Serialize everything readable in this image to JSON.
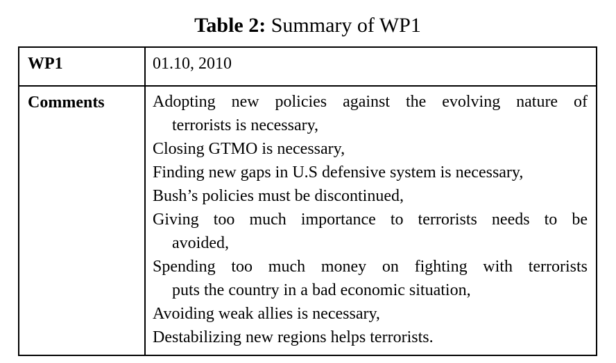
{
  "caption": {
    "label": "Table 2:",
    "text": " Summary of WP1"
  },
  "table": {
    "wp_row": {
      "header": "WP1",
      "value": "01.10, 2010"
    },
    "comments_row": {
      "header": "Comments",
      "lines": [
        "Adopting new policies against the evolving nature of",
        "terrorists is necessary,",
        "Closing GTMO is necessary,",
        "Finding new gaps in U.S defensive system is necessary,",
        "Bush’s policies must be discontinued,",
        "Giving too much importance to terrorists needs to be",
        "avoided,",
        "Spending too much money on fighting with terrorists",
        "puts the country in a bad economic situation,",
        "Avoiding weak allies is necessary,",
        "Destabilizing new regions helps terrorists."
      ]
    }
  },
  "colors": {
    "text": "#000000",
    "border": "#000000",
    "background": "#ffffff"
  }
}
